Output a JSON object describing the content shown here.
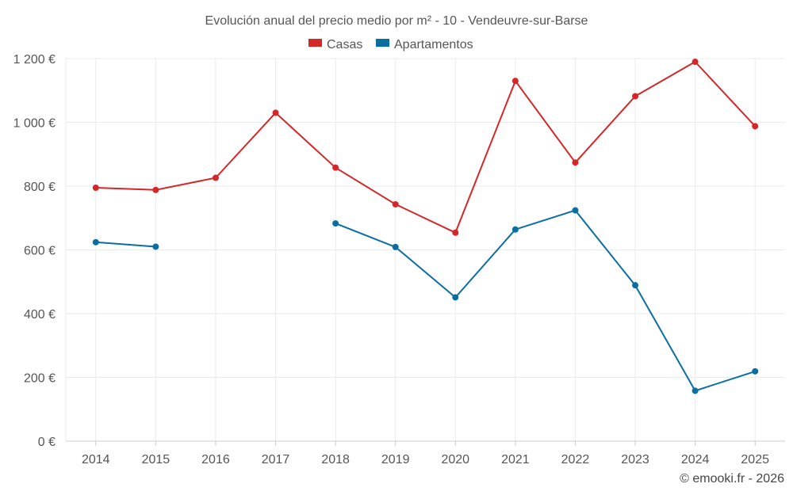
{
  "chart_data": {
    "type": "line",
    "title": "Evolución anual del precio medio por m² - 10 - Vendeuvre-sur-Barse",
    "categories": [
      "2014",
      "2015",
      "2016",
      "2017",
      "2018",
      "2019",
      "2020",
      "2021",
      "2022",
      "2023",
      "2024",
      "2025"
    ],
    "series": [
      {
        "name": "Casas",
        "color": "#d62728",
        "values": [
          795,
          788,
          826,
          1030,
          858,
          743,
          654,
          1130,
          874,
          1082,
          1190,
          988
        ]
      },
      {
        "name": "Apartamentos",
        "color": "#0a6ea3",
        "values": [
          624,
          610,
          null,
          null,
          683,
          609,
          451,
          664,
          724,
          489,
          158,
          219
        ]
      }
    ],
    "ylim": [
      0,
      1200
    ],
    "yticks": [
      0,
      200,
      400,
      600,
      800,
      1000,
      1200
    ],
    "ytick_labels": [
      "0 €",
      "200 €",
      "400 €",
      "600 €",
      "800 €",
      "1 000 €",
      "1 200 €"
    ],
    "xlabel": "",
    "ylabel": "",
    "legend_position": "top-center",
    "grid": true
  },
  "credit": "© emooki.fr - 2026"
}
